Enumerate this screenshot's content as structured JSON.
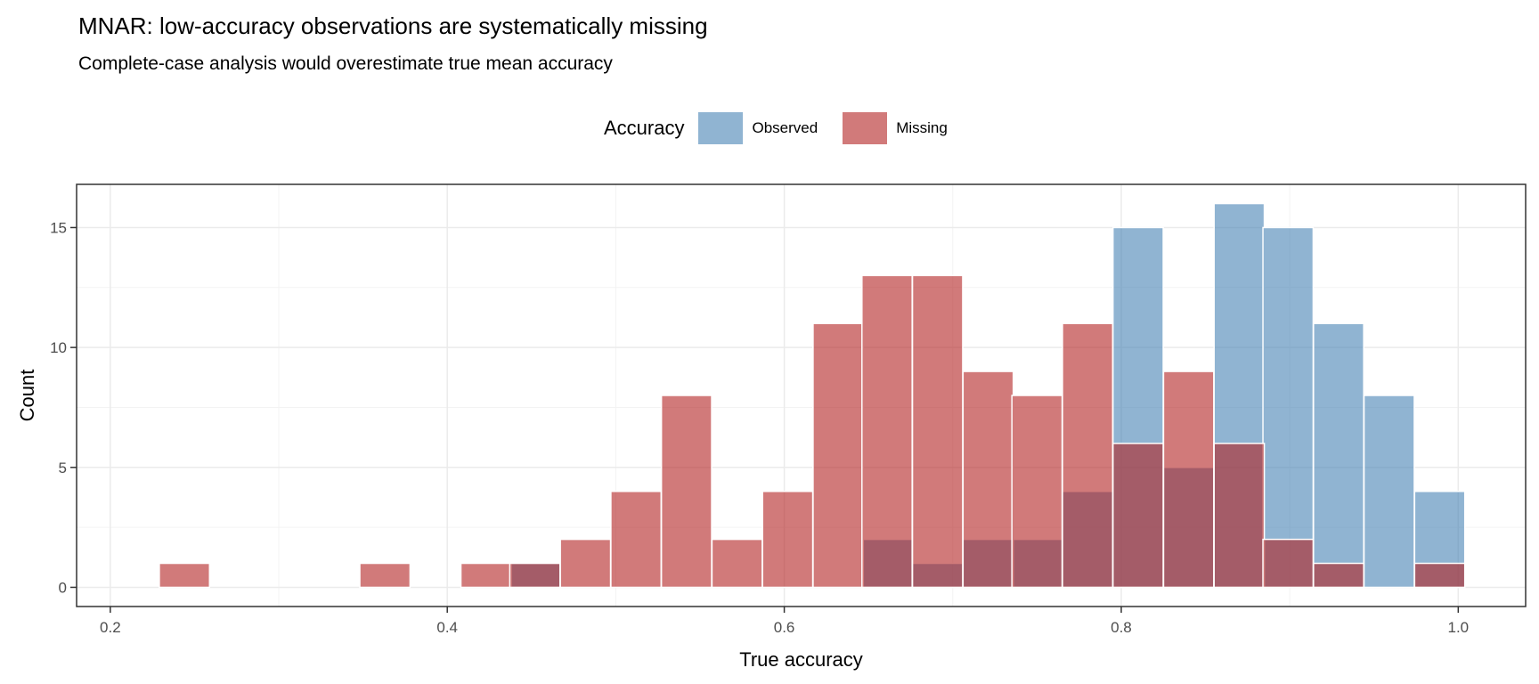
{
  "chart_data": {
    "type": "bar",
    "subtype": "overlapping-histogram",
    "title": "MNAR: low-accuracy observations are systematically missing",
    "subtitle": "Complete-case analysis would overestimate true mean accuracy",
    "xlabel": "True accuracy",
    "ylabel": "Count",
    "xlim": [
      0.18,
      1.04
    ],
    "ylim": [
      -0.8,
      16.8
    ],
    "xticks": [
      "0.2",
      "0.4",
      "0.6",
      "0.8",
      "1.0"
    ],
    "xtick_values": [
      0.2,
      0.4,
      0.6,
      0.8,
      1.0
    ],
    "yticks": [
      "0",
      "5",
      "10",
      "15"
    ],
    "ytick_values": [
      0,
      5,
      10,
      15
    ],
    "binwidth": 0.0298,
    "legend": {
      "title": "Accuracy",
      "position": "top"
    },
    "series": [
      {
        "name": "Observed",
        "color": "#4682B4",
        "bin_centers": [
          0.452,
          0.661,
          0.691,
          0.721,
          0.75,
          0.78,
          0.81,
          0.84,
          0.87,
          0.899,
          0.929,
          0.959,
          0.989
        ],
        "values": [
          1,
          2,
          1,
          2,
          2,
          4,
          15,
          5,
          16,
          15,
          11,
          8,
          4
        ]
      },
      {
        "name": "Missing",
        "color": "#B22222",
        "bin_centers": [
          0.244,
          0.363,
          0.423,
          0.452,
          0.482,
          0.512,
          0.542,
          0.572,
          0.602,
          0.632,
          0.661,
          0.691,
          0.721,
          0.75,
          0.78,
          0.81,
          0.84,
          0.87,
          0.899,
          0.929,
          0.989
        ],
        "values": [
          1,
          1,
          1,
          1,
          2,
          4,
          8,
          2,
          4,
          11,
          13,
          13,
          9,
          8,
          11,
          6,
          9,
          6,
          2,
          1,
          1
        ]
      }
    ]
  }
}
